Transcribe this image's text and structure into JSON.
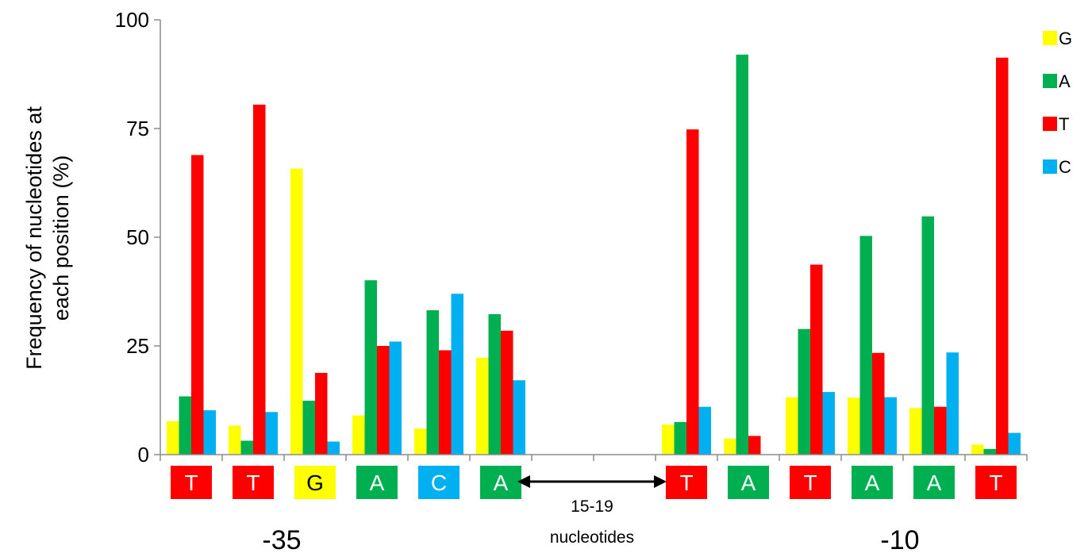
{
  "chart_data": {
    "type": "bar",
    "ylabel_lines": [
      "Frequency of nucleotides at",
      "each position (%)"
    ],
    "ylim": [
      0,
      100
    ],
    "yticks": [
      0,
      25,
      50,
      75,
      100
    ],
    "grid": false,
    "legend_position": "top-right",
    "num_groups": 14,
    "series": [
      {
        "name": "G",
        "color": "#FFFF00",
        "values": [
          7.7,
          6.7,
          65.8,
          9.0,
          6.0,
          22.3,
          null,
          null,
          6.9,
          3.7,
          13.2,
          13.1,
          10.7,
          2.3
        ]
      },
      {
        "name": "A",
        "color": "#00B050",
        "values": [
          13.4,
          3.2,
          12.4,
          40.1,
          33.2,
          32.3,
          null,
          null,
          7.5,
          92.0,
          28.9,
          50.3,
          54.8,
          1.3
        ]
      },
      {
        "name": "T",
        "color": "#FF0000",
        "values": [
          68.9,
          80.5,
          18.8,
          25.0,
          24.0,
          28.5,
          null,
          null,
          74.8,
          4.3,
          43.7,
          23.4,
          11.0,
          91.3
        ]
      },
      {
        "name": "C",
        "color": "#00B0F0",
        "values": [
          10.2,
          9.8,
          3.0,
          26.0,
          37.0,
          17.1,
          null,
          null,
          11.0,
          null,
          14.4,
          13.2,
          23.5,
          5.0
        ]
      }
    ],
    "sequence": [
      {
        "letter": "T",
        "color": "#FF0000",
        "group": 0
      },
      {
        "letter": "T",
        "color": "#FF0000",
        "group": 1
      },
      {
        "letter": "G",
        "color": "#FFFF00",
        "group": 2
      },
      {
        "letter": "A",
        "color": "#00B050",
        "group": 3
      },
      {
        "letter": "C",
        "color": "#00B0F0",
        "group": 4
      },
      {
        "letter": "A",
        "color": "#00B050",
        "group": 5
      },
      {
        "letter": "T",
        "color": "#FF0000",
        "group": 8
      },
      {
        "letter": "A",
        "color": "#00B050",
        "group": 9
      },
      {
        "letter": "T",
        "color": "#FF0000",
        "group": 10
      },
      {
        "letter": "A",
        "color": "#00B050",
        "group": 11
      },
      {
        "letter": "A",
        "color": "#00B050",
        "group": 12
      },
      {
        "letter": "T",
        "color": "#FF0000",
        "group": 13
      }
    ],
    "spacer_label_lines": [
      "15-19",
      "nucleotides"
    ],
    "region_labels": [
      "-35",
      "-10"
    ]
  }
}
